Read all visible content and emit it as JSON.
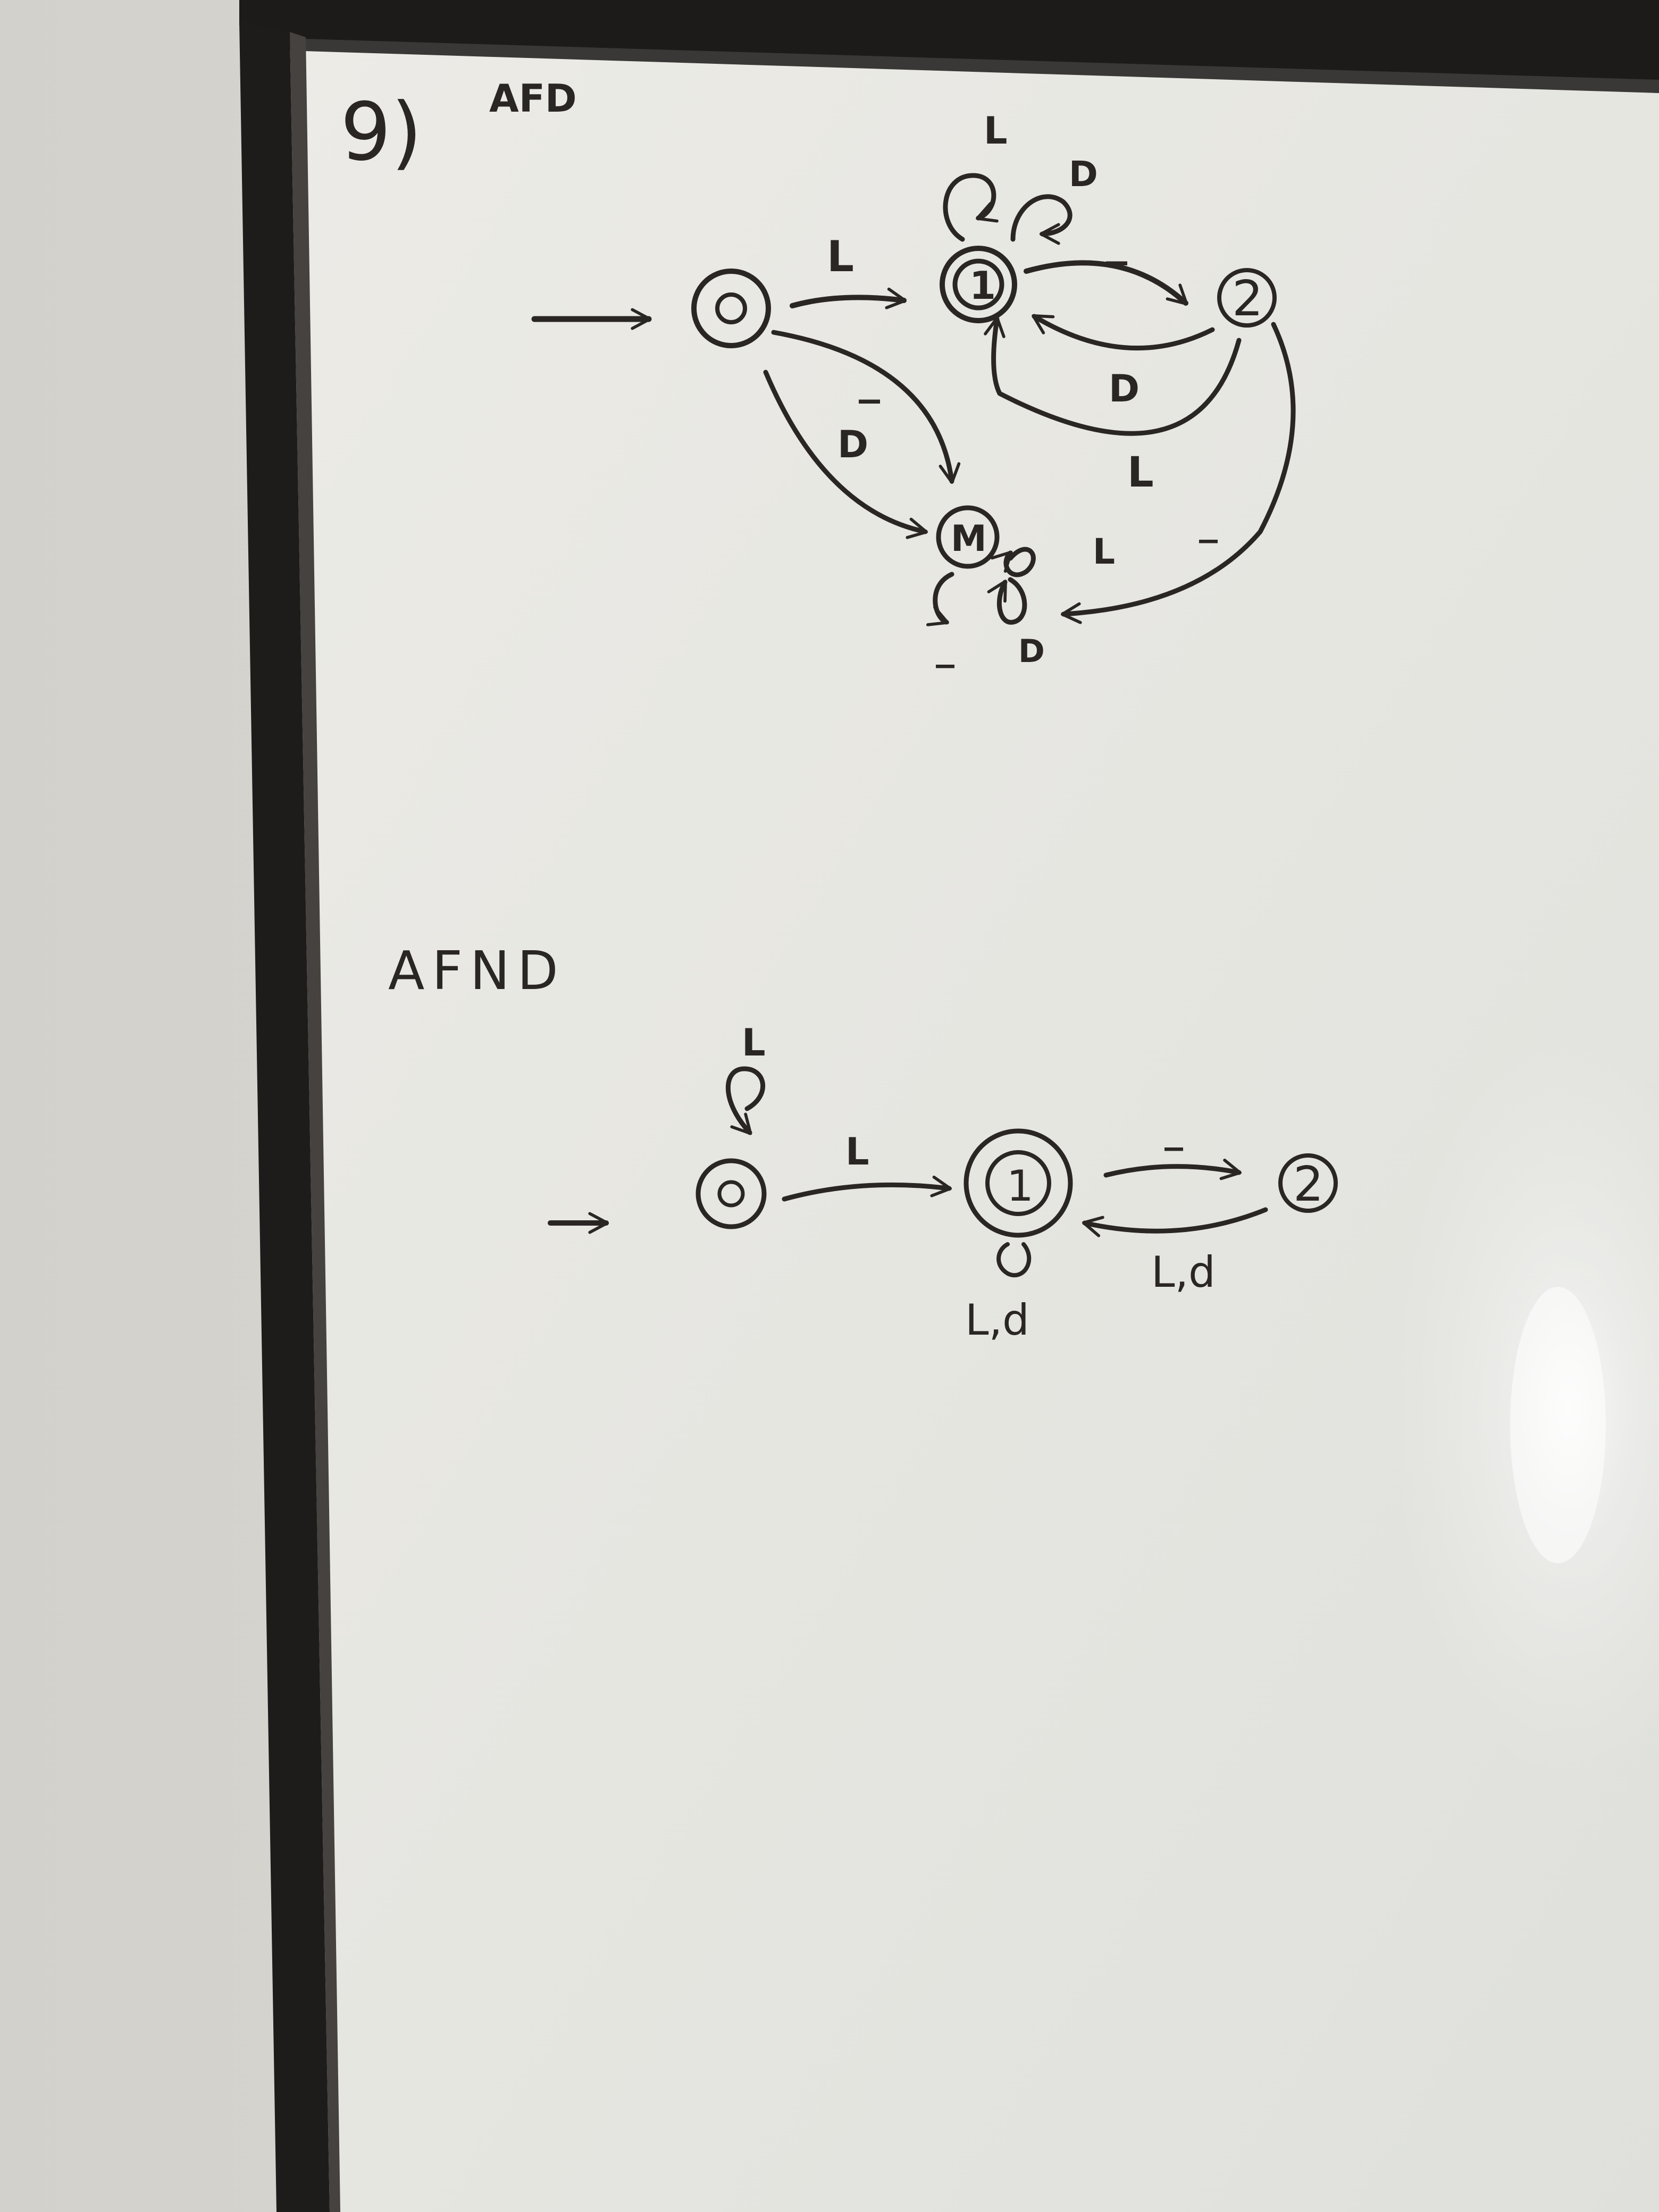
{
  "problem": {
    "number": "9)",
    "afd_title": "AFD",
    "afnd_title": "AFND"
  },
  "afd": {
    "states": [
      {
        "id": "q0",
        "label": "0",
        "final": false,
        "initial": true
      },
      {
        "id": "q1",
        "label": "1",
        "final": true,
        "initial": false
      },
      {
        "id": "q2",
        "label": "2",
        "final": false,
        "initial": false
      },
      {
        "id": "qm",
        "label": "M",
        "final": false,
        "initial": false
      }
    ],
    "transitions": [
      {
        "from": "0",
        "to": "1",
        "label": "L"
      },
      {
        "from": "0",
        "to": "M",
        "label": "_"
      },
      {
        "from": "0",
        "to": "M",
        "label": "D"
      },
      {
        "from": "1",
        "to": "1",
        "label": "L"
      },
      {
        "from": "1",
        "to": "1",
        "label": "D"
      },
      {
        "from": "1",
        "to": "2",
        "label": "_"
      },
      {
        "from": "2",
        "to": "1",
        "label": "D"
      },
      {
        "from": "2",
        "to": "1",
        "label": "L"
      },
      {
        "from": "2",
        "to": "M",
        "label": "_"
      },
      {
        "from": "M",
        "to": "M",
        "label": "L"
      },
      {
        "from": "M",
        "to": "M",
        "label": "_"
      },
      {
        "from": "M",
        "to": "M",
        "label": "D"
      }
    ]
  },
  "afnd": {
    "states": [
      {
        "id": "q0",
        "label": "0",
        "final": false,
        "initial": true
      },
      {
        "id": "q1",
        "label": "1",
        "final": true,
        "initial": false
      },
      {
        "id": "q2",
        "label": "2",
        "final": false,
        "initial": false
      }
    ],
    "transitions": [
      {
        "from": "0",
        "to": "0",
        "label": "L"
      },
      {
        "from": "0",
        "to": "1",
        "label": "L"
      },
      {
        "from": "1",
        "to": "1",
        "label": "L,d"
      },
      {
        "from": "1",
        "to": "2",
        "label": "_"
      },
      {
        "from": "2",
        "to": "1",
        "label": "L,d"
      }
    ]
  }
}
